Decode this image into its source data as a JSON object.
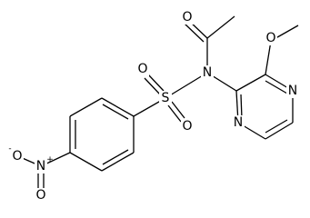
{
  "atoms": [
    {
      "label": "O"
    },
    {
      "label": "O"
    },
    {
      "label": "N"
    },
    {
      "label": "N"
    },
    {
      "label": "N"
    },
    {
      "label": "S"
    },
    {
      "label": "O"
    },
    {
      "label": "O"
    },
    {
      "label": "N",
      "charge": "+"
    },
    {
      "label": "O",
      "charge": "-"
    },
    {
      "label": "O"
    }
  ]
}
